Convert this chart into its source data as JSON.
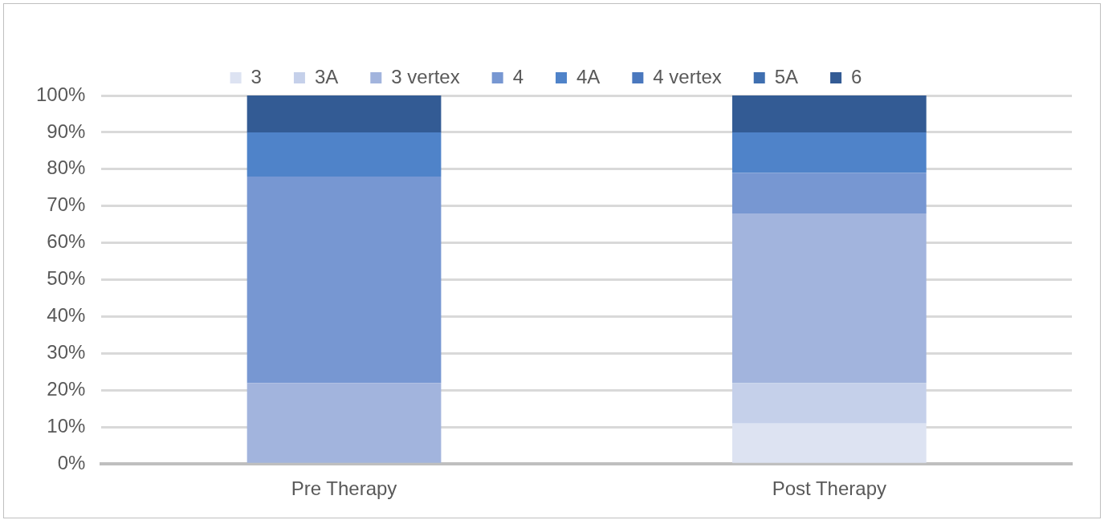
{
  "chart_data": {
    "type": "bar",
    "stacked": true,
    "categories": [
      "Pre Therapy",
      "Post Therapy"
    ],
    "series": [
      {
        "name": "3",
        "color": "#dde3f2",
        "values": [
          0,
          11
        ]
      },
      {
        "name": "3A",
        "color": "#c5d0ea",
        "values": [
          0,
          11
        ]
      },
      {
        "name": "3 vertex",
        "color": "#a2b4dd",
        "values": [
          22,
          46
        ]
      },
      {
        "name": "4",
        "color": "#7797d2",
        "values": [
          56,
          11
        ]
      },
      {
        "name": "4A",
        "color": "#4f83c9",
        "values": [
          12,
          11
        ]
      },
      {
        "name": "4 vertex",
        "color": "#4a78be",
        "values": [
          0,
          0
        ]
      },
      {
        "name": "5A",
        "color": "#3f6fb0",
        "values": [
          0,
          0
        ]
      },
      {
        "name": "6",
        "color": "#335b94",
        "values": [
          10,
          10
        ]
      }
    ],
    "ylim": [
      0,
      100
    ],
    "yticks": [
      {
        "value": 0,
        "label": "0%"
      },
      {
        "value": 10,
        "label": "10%"
      },
      {
        "value": 20,
        "label": "20%"
      },
      {
        "value": 30,
        "label": "30%"
      },
      {
        "value": 40,
        "label": "40%"
      },
      {
        "value": 50,
        "label": "50%"
      },
      {
        "value": 60,
        "label": "60%"
      },
      {
        "value": 70,
        "label": "70%"
      },
      {
        "value": 80,
        "label": "80%"
      },
      {
        "value": 90,
        "label": "90%"
      },
      {
        "value": 100,
        "label": "100%"
      }
    ],
    "grid": "y",
    "legend": "top"
  }
}
